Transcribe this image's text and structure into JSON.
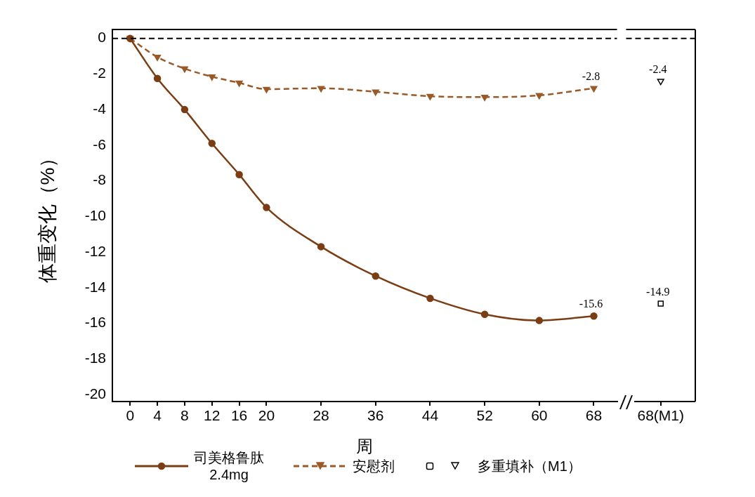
{
  "chart_data": [
    {
      "type": "line",
      "xlabel": "周",
      "ylabel": "体重变化（%）",
      "x": [
        0,
        4,
        8,
        12,
        16,
        20,
        28,
        36,
        44,
        52,
        60,
        68
      ],
      "xlim": [
        -2.6,
        71.4
      ],
      "xticks": [
        0,
        4,
        8,
        12,
        16,
        20,
        28,
        36,
        44,
        52,
        60,
        68
      ],
      "ylim": [
        -20.4,
        0.5
      ],
      "yticks": [
        0,
        -2,
        -4,
        -6,
        -8,
        -10,
        -12,
        -14,
        -16,
        -18,
        -20
      ],
      "legend": "bottom",
      "series": [
        {
          "name": "司美格鲁肽\n2.4mg",
          "color": "#7a3d14",
          "marker": "circle",
          "line_style": "solid",
          "values": [
            0,
            -2.25,
            -4.0,
            -5.9,
            -7.65,
            -9.5,
            -11.7,
            -13.35,
            -14.6,
            -15.5,
            -15.85,
            -15.6
          ],
          "value_labels": [
            null,
            null,
            null,
            null,
            null,
            null,
            null,
            null,
            null,
            null,
            null,
            "-15.6"
          ]
        },
        {
          "name": "安慰剂",
          "color": "#9a5a28",
          "marker": "triangle",
          "line_style": "dashed",
          "values": [
            0,
            -1.05,
            -1.7,
            -2.15,
            -2.5,
            -2.85,
            -2.8,
            -3.0,
            -3.25,
            -3.3,
            -3.2,
            -2.8
          ],
          "value_labels": [
            null,
            null,
            null,
            null,
            null,
            null,
            null,
            null,
            null,
            null,
            null,
            "-2.8"
          ]
        }
      ],
      "ref_lines": [
        {
          "axis": "y",
          "value": 0,
          "color": "#000000",
          "line_style": "dashed"
        }
      ]
    },
    {
      "type": "scatter",
      "categories": [
        "68(M1)"
      ],
      "ylim": [
        -20.4,
        0.5
      ],
      "tick_labels": "x",
      "data_labels": true,
      "series": [
        {
          "color": "#000000",
          "marker": "square",
          "values": [
            -14.9
          ]
        },
        {
          "name": "多重填补（M1）",
          "color": "#000000",
          "marker": "triangle",
          "values": [
            -2.4
          ]
        }
      ],
      "ref_lines": [
        {
          "axis": "y",
          "value": 0,
          "color": "#000000",
          "line_style": "dashed"
        }
      ]
    }
  ]
}
